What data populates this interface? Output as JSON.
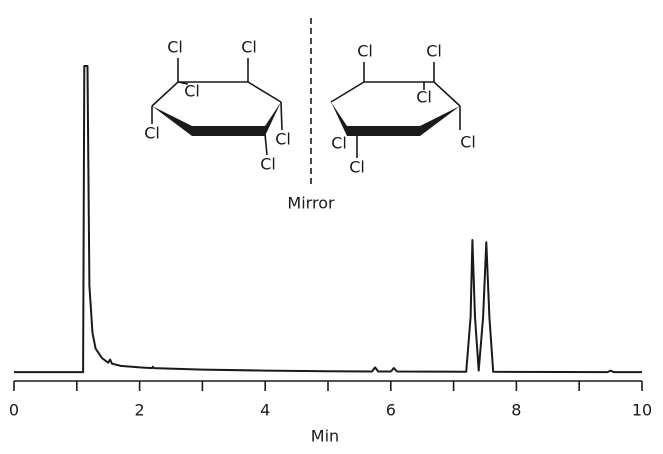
{
  "chart_data": {
    "type": "line",
    "x_label": "Min",
    "xlim": [
      0,
      10
    ],
    "ylim": [
      0,
      100
    ],
    "xticks": [
      0,
      2,
      4,
      6,
      8,
      10
    ],
    "xminorticks": [
      1,
      3,
      5,
      7,
      9
    ],
    "series": [
      {
        "color": "#1a1a1a",
        "x": [
          0,
          1.1,
          1.12,
          1.17,
          1.2,
          1.25,
          1.3,
          1.4,
          1.5,
          1.53,
          1.56,
          1.7,
          2,
          2.2,
          2.21,
          2.23,
          3,
          4,
          5,
          5.7,
          5.75,
          5.8,
          6.0,
          6.05,
          6.1,
          7.2,
          7.27,
          7.3,
          7.34,
          7.4,
          7.47,
          7.52,
          7.57,
          7.63,
          9.45,
          9.5,
          9.55,
          10
        ],
        "values": [
          2.5,
          2.5,
          100,
          100,
          30,
          15,
          10,
          7,
          5.5,
          6.5,
          5.2,
          4.5,
          4,
          3.8,
          4.2,
          3.8,
          3.3,
          3,
          2.8,
          2.7,
          4,
          2.7,
          2.7,
          3.8,
          2.7,
          2.6,
          20,
          44.6,
          20,
          3,
          20,
          43.9,
          20,
          2.6,
          2.5,
          3,
          2.5,
          2.5
        ]
      }
    ],
    "annotations": {
      "mirror": "Mirror",
      "left_molecule": [
        "Cl",
        "Cl",
        "Cl",
        "Cl",
        "Cl",
        "Cl"
      ],
      "right_molecule": [
        "Cl",
        "Cl",
        "Cl",
        "Cl",
        "Cl",
        "Cl"
      ]
    }
  }
}
